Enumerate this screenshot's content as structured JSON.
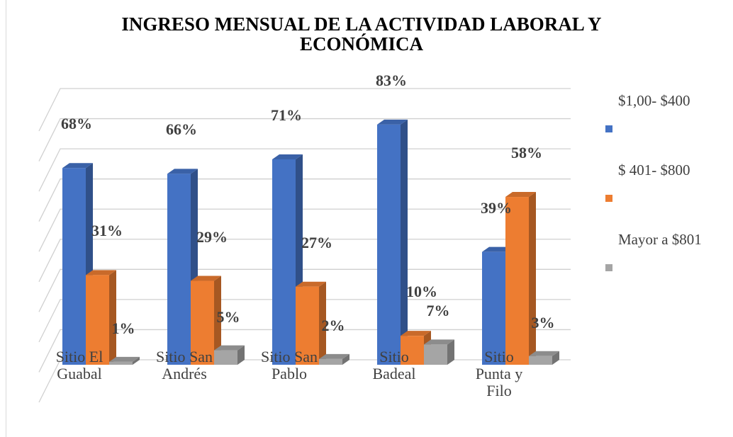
{
  "chart_data": {
    "type": "bar3d",
    "title": "INGRESO MENSUAL DE LA ACTIVIDAD LABORAL Y ECONÓMICA",
    "categories": [
      "Sitio El Guabal",
      "Sitio San Andrés",
      "Sitio San Pablo",
      "Sitio Badeal",
      "Sitio Punta y Filo"
    ],
    "series": [
      {
        "name": "$1,00- $400",
        "color": "#4472c4",
        "values": [
          68,
          66,
          71,
          83,
          39
        ],
        "value_labels": [
          "68%",
          "66%",
          "71%",
          "83%",
          "39%"
        ]
      },
      {
        "name": "$ 401- $800",
        "color": "#ed7d31",
        "values": [
          31,
          29,
          27,
          10,
          58
        ],
        "value_labels": [
          "31%",
          "29%",
          "27%",
          "10%",
          "58%"
        ]
      },
      {
        "name": "Mayor a $801",
        "color": "#a5a5a5",
        "values": [
          1,
          5,
          2,
          7,
          3
        ],
        "value_labels": [
          "1%",
          "5%",
          "2%",
          "7%",
          "3%"
        ]
      }
    ],
    "ylim": [
      0,
      90
    ],
    "yticks": [
      0,
      10,
      20,
      30,
      40,
      50,
      60,
      70,
      80,
      90
    ],
    "grid": true,
    "legend": "right"
  }
}
